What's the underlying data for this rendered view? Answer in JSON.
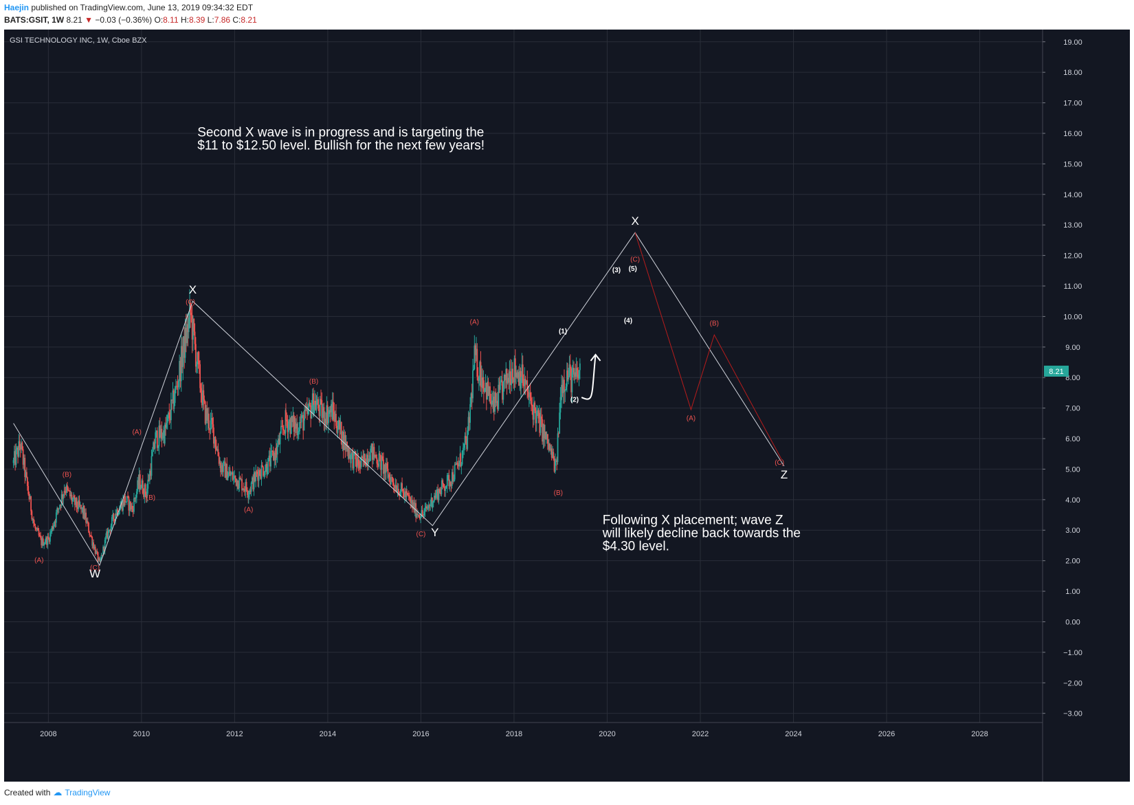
{
  "header": {
    "author": "Haejin",
    "published_text": "published on TradingView.com, June 13, 2019 09:34:32 EDT",
    "symbol": "BATS:GSIT, 1W",
    "last": "8.21",
    "change_arrow": "▼",
    "change": "−0.03 (−0.36%)",
    "open_label": "O:",
    "open": "8.11",
    "high_label": "H:",
    "high": "8.39",
    "low_label": "L:",
    "low": "7.86",
    "close_label": "C:",
    "close": "8.21"
  },
  "footer": {
    "created_with": "Created with",
    "brand": "TradingView"
  },
  "colors": {
    "background": "#131722",
    "grid": "#2a2e39",
    "up": "#26a69a",
    "down": "#ef5350",
    "price_tag": "#26a69a",
    "projection_white": "#d1d4dc",
    "projection_red": "#b71c1c"
  },
  "chart_data": {
    "type": "candlestick",
    "title": "GSI TECHNOLOGY INC, 1W, Cboe BZX",
    "ylim": [
      -3.3,
      19.4
    ],
    "y_ticks": [
      19,
      18,
      17,
      16,
      15,
      14,
      13,
      12,
      11,
      10,
      9,
      8,
      7,
      6,
      5,
      4,
      3,
      2,
      1,
      0,
      -1,
      -2,
      -3
    ],
    "y_tick_labels": [
      "19.00",
      "18.00",
      "17.00",
      "16.00",
      "15.00",
      "14.00",
      "13.00",
      "12.00",
      "11.00",
      "10.00",
      "9.00",
      "8.00",
      "7.00",
      "6.00",
      "5.00",
      "4.00",
      "3.00",
      "2.00",
      "1.00",
      "0.00",
      "−1.00",
      "−2.00",
      "−3.00"
    ],
    "xlim": [
      2007.05,
      2029.35
    ],
    "x_ticks": [
      2008,
      2010,
      2012,
      2014,
      2016,
      2018,
      2020,
      2022,
      2024,
      2026,
      2028
    ],
    "x_tick_labels": [
      "2008",
      "2010",
      "2012",
      "2014",
      "2016",
      "2018",
      "2020",
      "2022",
      "2024",
      "2026",
      "2028"
    ],
    "grid": true,
    "last_price_label": "8.21",
    "last_price": 8.21,
    "price_path": [
      [
        2007.25,
        5.2
      ],
      [
        2007.4,
        5.8
      ],
      [
        2007.55,
        4.4
      ],
      [
        2007.7,
        3.1
      ],
      [
        2007.85,
        2.6
      ],
      [
        2008.0,
        2.7
      ],
      [
        2008.15,
        3.4
      ],
      [
        2008.35,
        4.4
      ],
      [
        2008.55,
        3.9
      ],
      [
        2008.75,
        3.6
      ],
      [
        2008.95,
        2.6
      ],
      [
        2009.1,
        1.9
      ],
      [
        2009.25,
        2.8
      ],
      [
        2009.45,
        3.6
      ],
      [
        2009.65,
        4.0
      ],
      [
        2009.8,
        3.7
      ],
      [
        2009.95,
        4.6
      ],
      [
        2010.1,
        4.2
      ],
      [
        2010.3,
        6.0
      ],
      [
        2010.5,
        6.2
      ],
      [
        2010.7,
        7.3
      ],
      [
        2010.9,
        8.9
      ],
      [
        2011.05,
        10.1
      ],
      [
        2011.2,
        8.4
      ],
      [
        2011.35,
        6.9
      ],
      [
        2011.55,
        6.2
      ],
      [
        2011.7,
        5.1
      ],
      [
        2011.9,
        4.8
      ],
      [
        2012.1,
        4.6
      ],
      [
        2012.3,
        4.3
      ],
      [
        2012.5,
        4.9
      ],
      [
        2012.7,
        5.1
      ],
      [
        2012.9,
        5.6
      ],
      [
        2013.1,
        6.6
      ],
      [
        2013.3,
        6.4
      ],
      [
        2013.5,
        6.6
      ],
      [
        2013.7,
        7.2
      ],
      [
        2013.9,
        6.8
      ],
      [
        2014.1,
        6.9
      ],
      [
        2014.3,
        6.1
      ],
      [
        2014.5,
        5.4
      ],
      [
        2014.7,
        5.1
      ],
      [
        2014.9,
        5.6
      ],
      [
        2015.1,
        5.3
      ],
      [
        2015.3,
        4.8
      ],
      [
        2015.5,
        4.4
      ],
      [
        2015.7,
        4.1
      ],
      [
        2015.9,
        3.6
      ],
      [
        2016.05,
        3.5
      ],
      [
        2016.25,
        4.0
      ],
      [
        2016.45,
        4.4
      ],
      [
        2016.65,
        4.7
      ],
      [
        2016.85,
        5.3
      ],
      [
        2017.0,
        6.0
      ],
      [
        2017.15,
        8.6
      ],
      [
        2017.35,
        7.9
      ],
      [
        2017.55,
        7.0
      ],
      [
        2017.75,
        7.6
      ],
      [
        2017.95,
        8.3
      ],
      [
        2018.15,
        8.1
      ],
      [
        2018.35,
        7.2
      ],
      [
        2018.55,
        6.5
      ],
      [
        2018.75,
        5.7
      ],
      [
        2018.9,
        5.0
      ],
      [
        2019.02,
        7.8
      ],
      [
        2019.15,
        8.1
      ],
      [
        2019.3,
        7.9
      ],
      [
        2019.42,
        8.21
      ]
    ],
    "overlay_lines": [
      {
        "color": "white",
        "points": [
          [
            2007.25,
            6.5
          ],
          [
            2009.1,
            1.85
          ],
          [
            2011.1,
            10.5
          ],
          [
            2016.25,
            3.15
          ],
          [
            2020.6,
            12.75
          ],
          [
            2023.8,
            5.1
          ]
        ]
      },
      {
        "color": "red",
        "points": [
          [
            2020.6,
            12.75
          ],
          [
            2021.8,
            6.95
          ],
          [
            2022.3,
            9.4
          ],
          [
            2023.75,
            5.3
          ]
        ]
      }
    ],
    "wave_labels": [
      {
        "text": "W",
        "x": 2009.0,
        "y": 1.45,
        "color": "white",
        "size": "large"
      },
      {
        "text": "X",
        "x": 2011.1,
        "y": 10.75,
        "color": "white",
        "size": "large"
      },
      {
        "text": "Y",
        "x": 2016.3,
        "y": 2.8,
        "color": "white",
        "size": "large"
      },
      {
        "text": "X",
        "x": 2020.6,
        "y": 13.0,
        "color": "white",
        "size": "large"
      },
      {
        "text": "Z",
        "x": 2023.8,
        "y": 4.7,
        "color": "white",
        "size": "large"
      },
      {
        "text": "(A)",
        "x": 2007.8,
        "y": 1.95,
        "color": "red",
        "size": "small"
      },
      {
        "text": "(B)",
        "x": 2008.4,
        "y": 4.75,
        "color": "red",
        "size": "small"
      },
      {
        "text": "(C)",
        "x": 2009.0,
        "y": 1.7,
        "color": "red",
        "size": "small"
      },
      {
        "text": "(A)",
        "x": 2009.9,
        "y": 6.15,
        "color": "red",
        "size": "small"
      },
      {
        "text": "(B)",
        "x": 2010.2,
        "y": 4.0,
        "color": "red",
        "size": "small"
      },
      {
        "text": "(C)",
        "x": 2011.05,
        "y": 10.4,
        "color": "red",
        "size": "small"
      },
      {
        "text": "(A)",
        "x": 2012.3,
        "y": 3.6,
        "color": "red",
        "size": "small"
      },
      {
        "text": "(B)",
        "x": 2013.7,
        "y": 7.8,
        "color": "red",
        "size": "small"
      },
      {
        "text": "(C)",
        "x": 2016.0,
        "y": 2.8,
        "color": "red",
        "size": "small"
      },
      {
        "text": "(A)",
        "x": 2017.15,
        "y": 9.75,
        "color": "red",
        "size": "small"
      },
      {
        "text": "(B)",
        "x": 2018.95,
        "y": 4.15,
        "color": "red",
        "size": "small"
      },
      {
        "text": "(1)",
        "x": 2019.05,
        "y": 9.45,
        "color": "white",
        "size": "small"
      },
      {
        "text": "(2)",
        "x": 2019.3,
        "y": 7.2,
        "color": "white",
        "size": "small"
      },
      {
        "text": "(3)",
        "x": 2020.2,
        "y": 11.45,
        "color": "white",
        "size": "small"
      },
      {
        "text": "(4)",
        "x": 2020.45,
        "y": 9.8,
        "color": "white",
        "size": "small"
      },
      {
        "text": "(5)",
        "x": 2020.55,
        "y": 11.5,
        "color": "white",
        "size": "small"
      },
      {
        "text": "(C)",
        "x": 2020.6,
        "y": 11.8,
        "color": "red",
        "size": "small"
      },
      {
        "text": "(A)",
        "x": 2021.8,
        "y": 6.6,
        "color": "red",
        "size": "small"
      },
      {
        "text": "(B)",
        "x": 2022.3,
        "y": 9.7,
        "color": "red",
        "size": "small"
      },
      {
        "text": "(C)",
        "x": 2023.7,
        "y": 5.15,
        "color": "red",
        "size": "small"
      }
    ],
    "annotations": [
      {
        "lines": [
          "Second X wave is in progress and is targeting the",
          "$11 to $12.50 level. Bullish for the next few years!"
        ],
        "x": 2011.2,
        "y": 15.9
      },
      {
        "lines": [
          "Following X placement; wave Z",
          "will likely decline back towards the",
          "$4.30 level."
        ],
        "x": 2019.9,
        "y": 3.2
      }
    ]
  }
}
